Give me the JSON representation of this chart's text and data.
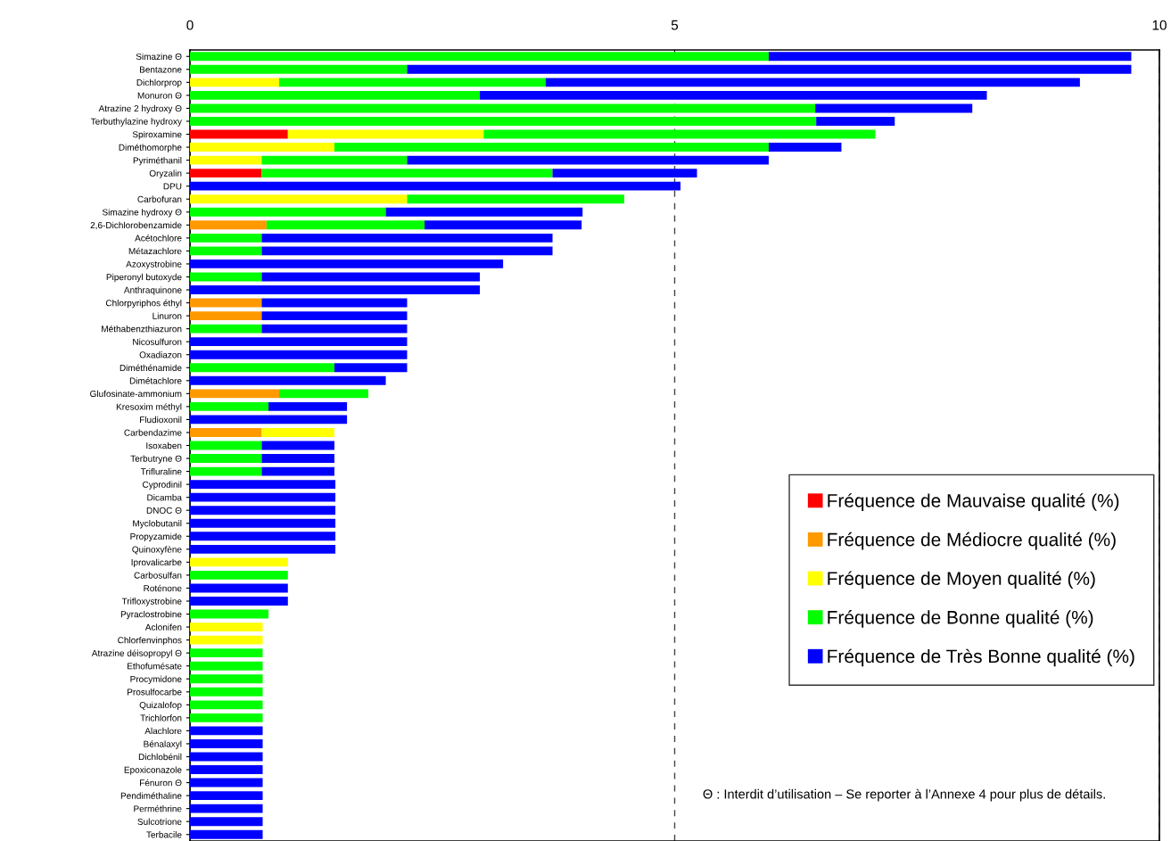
{
  "chart_data": {
    "type": "bar",
    "orientation": "horizontal",
    "stacked": true,
    "categories": [
      "Simazine Θ",
      "Bentazone",
      "Dichlorprop",
      "Monuron Θ",
      "Atrazine 2 hydroxy Θ",
      "Terbuthylazine hydroxy",
      "Spiroxamine",
      "Diméthomorphe",
      "Pyriméthanil",
      "Oryzalin",
      "DPU",
      "Carbofuran",
      "Simazine hydroxy Θ",
      "2,6-Dichlorobenzamide",
      "Acétochlore",
      "Métazachlore",
      "Azoxystrobine",
      "Piperonyl butoxyde",
      "Anthraquinone",
      "Chlorpyriphos éthyl",
      "Linuron",
      "Méthabenzthiazuron",
      "Nicosulfuron",
      "Oxadiazon",
      "Diméthénamide",
      "Dimétachlore",
      "Glufosinate-ammonium",
      "Kresoxim méthyl",
      "Fludioxonil",
      "Carbendazime",
      "Isoxaben",
      "Terbutryne Θ",
      "Trifluraline",
      "Cyprodinil",
      "Dicamba",
      "DNOC Θ",
      "Myclobutanil",
      "Propyzamide",
      "Quinoxyfène",
      "Iprovalicarbe",
      "Carbosulfan",
      "Roténone",
      "Trifloxystrobine",
      "Pyraclostrobine",
      "Aclonifen",
      "Chlorfenvinphos",
      "Atrazine déisopropyl Θ",
      "Ethofumésate",
      "Procymidone",
      "Prosulfocarbe",
      "Quizalofop",
      "Trichlorfon",
      "Alachlore",
      "Bénalaxyl",
      "Dichlobénil",
      "Epoxiconazole",
      "Fénuron Θ",
      "Pendiméthaline",
      "Perméthrine",
      "Sulcotrione",
      "Terbacile"
    ],
    "series": [
      {
        "name": "Fréquence de Mauvaise qualité (%)",
        "color": "#ff0000",
        "values": [
          null,
          null,
          null,
          null,
          null,
          null,
          1.01,
          null,
          null,
          0.74,
          null,
          null,
          null,
          null,
          null,
          null,
          null,
          null,
          null,
          null,
          null,
          null,
          null,
          null,
          null,
          null,
          null,
          null,
          null,
          null,
          null,
          null,
          null,
          null,
          null,
          null,
          null,
          null,
          null,
          null,
          null,
          null,
          null,
          null,
          null,
          null,
          null,
          null,
          null,
          null,
          null,
          null,
          null,
          null,
          null,
          null,
          null,
          null,
          null,
          null,
          null
        ]
      },
      {
        "name": "Fréquence de Médiocre qualité (%)",
        "color": "#ff9900",
        "values": [
          null,
          null,
          null,
          null,
          null,
          null,
          null,
          null,
          null,
          null,
          null,
          null,
          null,
          0.79,
          null,
          null,
          null,
          null,
          null,
          0.74,
          0.74,
          null,
          null,
          null,
          null,
          null,
          0.92,
          null,
          null,
          0.74,
          null,
          null,
          null,
          null,
          null,
          null,
          null,
          null,
          null,
          null,
          null,
          null,
          null,
          null,
          null,
          null,
          null,
          null,
          null,
          null,
          null,
          null,
          null,
          null,
          null,
          null,
          null,
          null,
          null,
          null,
          null
        ]
      },
      {
        "name": "Fréquence de Moyen qualité (%)",
        "color": "#ffff00",
        "values": [
          null,
          null,
          0.92,
          null,
          null,
          null,
          2.02,
          1.49,
          0.74,
          null,
          null,
          2.24,
          null,
          null,
          null,
          null,
          null,
          null,
          null,
          null,
          null,
          null,
          null,
          null,
          null,
          null,
          null,
          null,
          null,
          0.75,
          null,
          null,
          null,
          null,
          null,
          null,
          null,
          null,
          null,
          1.01,
          null,
          null,
          null,
          null,
          0.75,
          0.75,
          null,
          null,
          null,
          null,
          null,
          null,
          null,
          null,
          null,
          null,
          null,
          null,
          null,
          null,
          null
        ]
      },
      {
        "name": "Fréquence de Bonne qualité (%)",
        "color": "#00ff00",
        "values": [
          5.97,
          2.24,
          2.75,
          2.99,
          6.45,
          6.46,
          4.04,
          4.48,
          1.5,
          3.0,
          null,
          2.24,
          2.02,
          1.63,
          0.74,
          0.74,
          null,
          0.74,
          null,
          null,
          null,
          0.74,
          null,
          null,
          1.49,
          null,
          0.92,
          0.81,
          null,
          null,
          0.74,
          0.74,
          0.74,
          null,
          null,
          null,
          null,
          null,
          null,
          null,
          1.01,
          null,
          null,
          0.81,
          null,
          null,
          0.75,
          0.75,
          0.75,
          0.75,
          0.75,
          0.75,
          null,
          null,
          null,
          null,
          null,
          null,
          null,
          null,
          null
        ]
      },
      {
        "name": "Fréquence de Très Bonne qualité (%)",
        "color": "#0000ff",
        "values": [
          3.74,
          7.47,
          5.51,
          5.23,
          1.62,
          0.81,
          null,
          0.75,
          3.73,
          1.49,
          5.06,
          null,
          2.03,
          1.62,
          3.0,
          3.0,
          3.23,
          2.25,
          2.99,
          1.5,
          1.5,
          1.5,
          2.24,
          2.24,
          0.75,
          2.02,
          null,
          0.81,
          1.62,
          null,
          0.75,
          0.75,
          0.75,
          1.5,
          1.5,
          1.5,
          1.5,
          1.5,
          1.5,
          null,
          null,
          1.01,
          1.01,
          null,
          null,
          null,
          null,
          null,
          null,
          null,
          null,
          null,
          0.75,
          0.75,
          0.75,
          0.75,
          0.75,
          0.75,
          0.75,
          0.75,
          0.75
        ]
      }
    ],
    "xlim": [
      0,
      10
    ],
    "xticks": [
      0,
      5,
      10
    ],
    "grid": "x",
    "legend": "right",
    "annotations": [
      "Θ : Interdit d’utilisation – Se reporter à l’Annexe 4 pour plus de détails."
    ]
  }
}
